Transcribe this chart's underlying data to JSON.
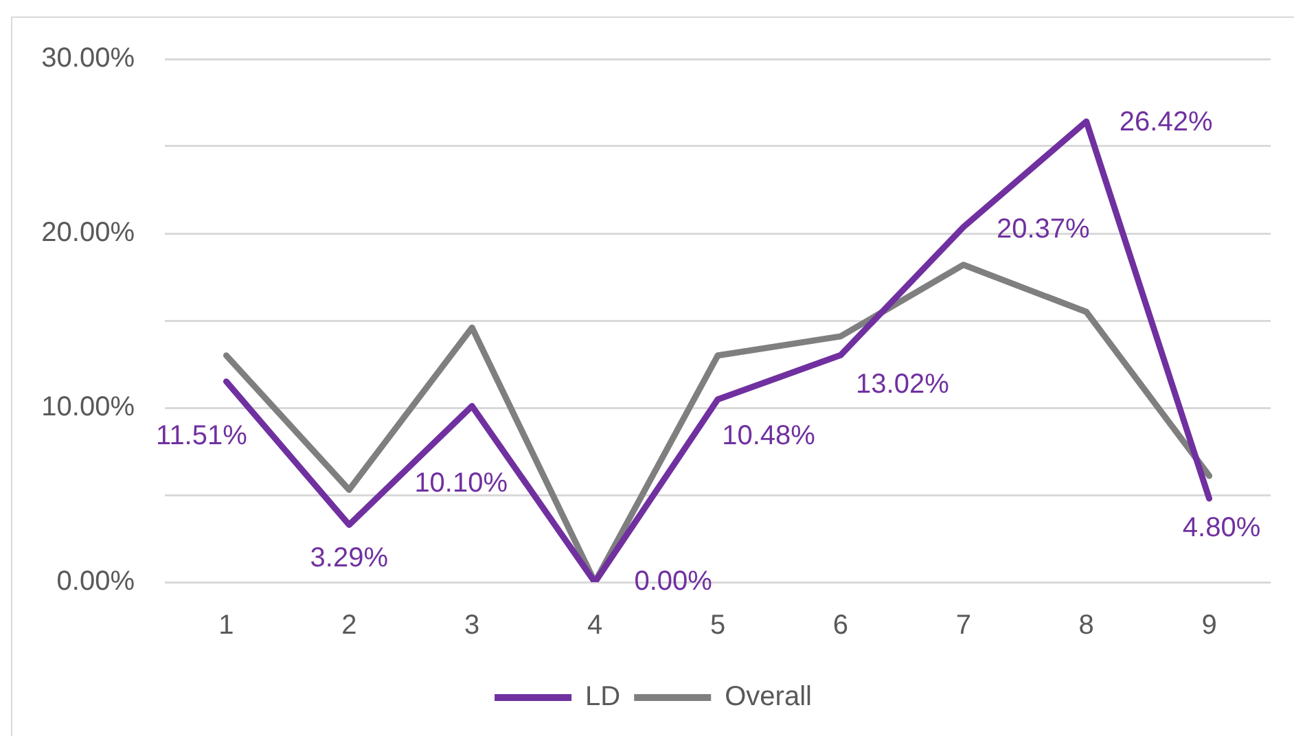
{
  "chart_data": {
    "type": "line",
    "categories": [
      "1",
      "2",
      "3",
      "4",
      "5",
      "6",
      "7",
      "8",
      "9"
    ],
    "series": [
      {
        "name": "LD",
        "color": "#7030a0",
        "values": [
          11.51,
          3.29,
          10.1,
          0.0,
          10.48,
          13.02,
          20.37,
          26.42,
          4.8
        ],
        "value_labels": [
          "11.51%",
          "3.29%",
          "10.10%",
          "0.00%",
          "10.48%",
          "13.02%",
          "20.37%",
          "26.42%",
          "4.80%"
        ]
      },
      {
        "name": "Overall",
        "color": "#7f7f7f",
        "values": [
          13.0,
          5.3,
          14.6,
          0.0,
          13.0,
          14.1,
          18.2,
          15.5,
          6.1
        ]
      }
    ],
    "ylim": [
      0,
      30
    ],
    "yticks": [
      {
        "value": 0,
        "label": "0.00%"
      },
      {
        "value": 5,
        "label": null
      },
      {
        "value": 10,
        "label": "10.00%"
      },
      {
        "value": 15,
        "label": null
      },
      {
        "value": 20,
        "label": "20.00%"
      },
      {
        "value": 25,
        "label": null
      },
      {
        "value": 30,
        "label": "30.00%"
      }
    ],
    "grid": "y",
    "legend": "bottom",
    "marker": "none",
    "line_style": "solid"
  }
}
